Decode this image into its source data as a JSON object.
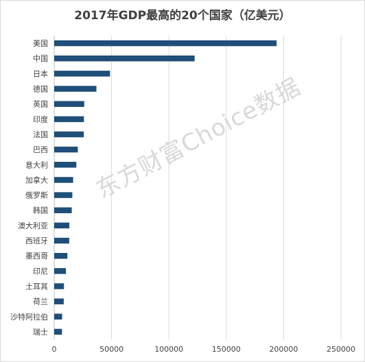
{
  "chart_data": {
    "type": "bar",
    "orientation": "horizontal",
    "title": "2017年GDP最高的20个国家（亿美元）",
    "categories": [
      "美国",
      "中国",
      "日本",
      "德国",
      "英国",
      "印度",
      "法国",
      "巴西",
      "意大利",
      "加拿大",
      "俄罗斯",
      "韩国",
      "澳大利亚",
      "西班牙",
      "墨西哥",
      "印尼",
      "土耳其",
      "荷兰",
      "沙特阿拉伯",
      "瑞士"
    ],
    "values": [
      193900,
      122400,
      48700,
      36800,
      26200,
      25900,
      25800,
      20600,
      19300,
      16500,
      15800,
      15300,
      13200,
      13100,
      11500,
      10200,
      8500,
      8300,
      6900,
      6800
    ],
    "xlim": [
      0,
      250000
    ],
    "xticks": [
      "0",
      "50000",
      "100000",
      "150000",
      "200000",
      "250000"
    ],
    "xlabel": "",
    "ylabel": "",
    "grid": true,
    "bar_color": "#1f4e79"
  },
  "watermark": "东方财富Choice数据"
}
